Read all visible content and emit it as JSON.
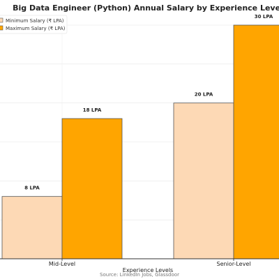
{
  "chart_data": {
    "type": "bar",
    "title": "Big Data Engineer (Python) Annual Salary by Experience Level",
    "categories": [
      "Mid-Level",
      "Senior-Level"
    ],
    "series": [
      {
        "name": "Minimum Salary (₹ LPA)",
        "values": [
          8,
          20
        ],
        "labels": [
          "8 LPA",
          "20 LPA"
        ],
        "color": "#FDD9B5",
        "edge": "#555555"
      },
      {
        "name": "Maximum Salary (₹ LPA)",
        "values": [
          18,
          30
        ],
        "labels": [
          "18 LPA",
          "30 LPA"
        ],
        "color": "#FFA500",
        "edge": "#555555"
      }
    ],
    "xlabel": "Experience Levels",
    "ylabel": "",
    "ylim": [
      0,
      30
    ],
    "grid": true,
    "legend": "top-left",
    "source": "Source: LinkedIn Jobs, Glassdoor"
  }
}
